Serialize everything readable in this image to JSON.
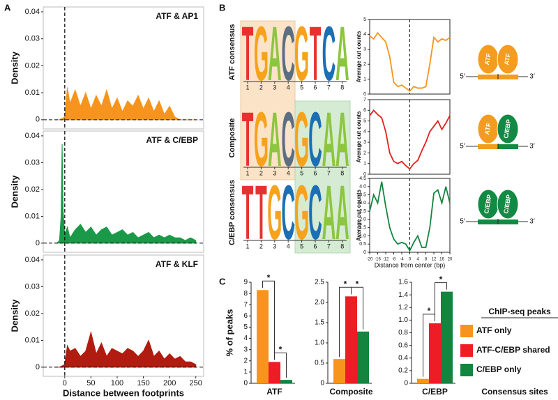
{
  "panel_labels": [
    "A",
    "B",
    "C"
  ],
  "chart_data": [
    {
      "type": "area",
      "title": "ATF & AP1",
      "ylabel": "Density",
      "color": "#f7941d",
      "xlim": [
        -41,
        265
      ],
      "ylim": [
        -0.0034,
        0.0418
      ],
      "yticks": [
        0,
        0.01,
        0.02,
        0.03,
        0.04
      ],
      "x": [
        -20,
        -10,
        0,
        5,
        10,
        20,
        30,
        40,
        50,
        60,
        70,
        80,
        90,
        100,
        110,
        120,
        130,
        140,
        150,
        160,
        170,
        180,
        190,
        200,
        210,
        220,
        230,
        240,
        250
      ],
      "values": [
        0,
        0,
        0.001,
        0.012,
        0.006,
        0.011,
        0.005,
        0.01,
        0.004,
        0.009,
        0.005,
        0.011,
        0.004,
        0.008,
        0.003,
        0.007,
        0.005,
        0.009,
        0.004,
        0.008,
        0.003,
        0.007,
        0.002,
        0.005,
        0.001,
        0,
        0,
        0,
        0
      ]
    },
    {
      "type": "area",
      "title": "ATF & C/EBP",
      "ylabel": "Density",
      "color": "#1a9a48",
      "xlim": [
        -41,
        265
      ],
      "ylim": [
        -0.0034,
        0.0418
      ],
      "yticks": [
        0,
        0.01,
        0.02,
        0.03,
        0.04
      ],
      "x": [
        -20,
        -15,
        -10,
        -7,
        -5,
        -3,
        0,
        5,
        10,
        20,
        30,
        40,
        50,
        60,
        70,
        80,
        90,
        100,
        110,
        120,
        130,
        140,
        150,
        160,
        170,
        180,
        190,
        200,
        210,
        220,
        230,
        240,
        250
      ],
      "values": [
        0,
        0,
        0.001,
        0.01,
        0.037,
        0.012,
        0.003,
        0.006,
        0.002,
        0.005,
        0.007,
        0.004,
        0.006,
        0.003,
        0.005,
        0.006,
        0.003,
        0.004,
        0.005,
        0.003,
        0.004,
        0.002,
        0.003,
        0.004,
        0.002,
        0.003,
        0.002,
        0.003,
        0.002,
        0.002,
        0.001,
        0.002,
        0.001
      ]
    },
    {
      "type": "area",
      "title": "ATF & KLF",
      "ylabel": "Density",
      "xlabel": "Distance between footprints",
      "color": "#b01c0f",
      "xlim": [
        -41,
        265
      ],
      "ylim": [
        -0.0034,
        0.0418
      ],
      "yticks": [
        0,
        0.01,
        0.02,
        0.03,
        0.04
      ],
      "xticks": [
        0,
        50,
        100,
        150,
        200,
        250
      ],
      "x": [
        -20,
        -10,
        0,
        5,
        10,
        20,
        30,
        40,
        50,
        60,
        70,
        80,
        90,
        100,
        110,
        120,
        130,
        140,
        150,
        160,
        170,
        180,
        190,
        200,
        210,
        220,
        230,
        240,
        250
      ],
      "values": [
        0,
        0,
        0.001,
        0.008,
        0.006,
        0.007,
        0.004,
        0.006,
        0.013,
        0.005,
        0.009,
        0.004,
        0.007,
        0.006,
        0.005,
        0.007,
        0.006,
        0.004,
        0.006,
        0.01,
        0.004,
        0.006,
        0.003,
        0.005,
        0.003,
        0.004,
        0.002,
        0.002,
        0.001
      ]
    },
    {
      "type": "line",
      "ylabel": "Average cut counts",
      "color": "#f7941d",
      "xlim": [
        -20,
        20
      ],
      "ylim": [
        0,
        5
      ],
      "yticks": [
        0,
        1,
        2,
        3,
        4,
        5
      ],
      "x": [
        -20,
        -18,
        -16,
        -14,
        -12,
        -10,
        -8,
        -6,
        -4,
        -2,
        0,
        2,
        4,
        6,
        8,
        10,
        12,
        14,
        16,
        18,
        20
      ],
      "values": [
        3.9,
        3.7,
        4.1,
        3.8,
        3.5,
        2.5,
        0.8,
        0.5,
        0.6,
        0.4,
        0.2,
        0.5,
        0.4,
        0.4,
        0.5,
        2.0,
        3.8,
        3.5,
        3.7,
        3.6,
        3.8
      ]
    },
    {
      "type": "line",
      "ylabel": "Average cut counts",
      "color": "#e0211c",
      "xlim": [
        -20,
        20
      ],
      "ylim": [
        0,
        7
      ],
      "yticks": [
        0,
        1,
        2,
        3,
        4,
        5,
        6,
        7
      ],
      "x": [
        -20,
        -18,
        -16,
        -14,
        -12,
        -10,
        -8,
        -6,
        -4,
        -2,
        0,
        2,
        4,
        6,
        8,
        10,
        12,
        14,
        16,
        18,
        20
      ],
      "values": [
        5.5,
        6.0,
        5.6,
        5.3,
        4.0,
        2.0,
        1.2,
        1.0,
        1.2,
        0.8,
        0.5,
        1.0,
        1.3,
        2.2,
        3.0,
        4.0,
        4.5,
        5.0,
        4.2,
        4.8,
        5.5
      ]
    },
    {
      "type": "line",
      "ylabel": "Average cut counts",
      "xlabel": "Distance from center (bp)",
      "color": "#14853e",
      "xlim": [
        -20,
        20
      ],
      "ylim": [
        0,
        4.5
      ],
      "yticks": [
        0,
        0.5,
        {
          "value": 1,
          "label": "1.0"
        },
        1.5,
        {
          "value": 2,
          "label": "2.0"
        },
        2.5,
        {
          "value": 3,
          "label": "3.0"
        },
        3.5,
        {
          "value": 4,
          "label": "4.0"
        },
        4.5
      ],
      "xticks": [
        -20,
        -16,
        -12,
        -8,
        -4,
        0,
        4,
        8,
        12,
        16,
        20
      ],
      "x": [
        -20,
        -18,
        -16,
        -14,
        -12,
        -10,
        -8,
        -6,
        -4,
        -2,
        0,
        2,
        4,
        6,
        8,
        10,
        12,
        14,
        16,
        18,
        20
      ],
      "values": [
        2.5,
        3.5,
        3.0,
        4.3,
        2.8,
        1.5,
        0.8,
        0.5,
        0.6,
        0.5,
        0.1,
        0.6,
        1.0,
        0.3,
        0.3,
        1.5,
        3.6,
        3.8,
        3.0,
        4.0,
        3.0
      ]
    },
    {
      "type": "bar",
      "xlabel": "ATF",
      "ylabel": "% of peaks",
      "ylim": [
        0,
        9
      ],
      "yticks": [
        0,
        1,
        2,
        3,
        4,
        5,
        6,
        7,
        8,
        9
      ],
      "values": [
        8.3,
        1.9,
        0.3
      ],
      "annotations": [
        "*",
        "*"
      ]
    },
    {
      "type": "bar",
      "xlabel": "Composite",
      "ylim": [
        0,
        2.5
      ],
      "yticks": [
        0,
        0.5,
        {
          "value": 1,
          "label": "1.0"
        },
        1.5,
        {
          "value": 2,
          "label": "2.0"
        },
        2.5
      ],
      "values": [
        0.6,
        2.15,
        1.28
      ],
      "annotations": [
        "*",
        "*"
      ]
    },
    {
      "type": "bar",
      "xlabel": "C/EBP",
      "ylim": [
        0,
        1.6
      ],
      "yticks": [
        0,
        0.2,
        0.4,
        0.6,
        0.8,
        {
          "value": 1,
          "label": "1.0"
        },
        1.2,
        1.4,
        1.6
      ],
      "values": [
        0.07,
        0.95,
        1.45
      ],
      "annotations": [
        "*",
        "*"
      ]
    }
  ],
  "legend": {
    "title": "ChIP-seq peaks",
    "note": "Consensus sites",
    "items": [
      {
        "name": "ATF only",
        "color": "#f7941d"
      },
      {
        "name": "ATF-C/EBP shared",
        "color": "#ee1c25"
      },
      {
        "name": "C/EBP only",
        "color": "#14853e"
      }
    ]
  },
  "logos": [
    {
      "label": "ATF consensus",
      "letters": [
        "T",
        "G",
        "A",
        "C",
        "G",
        "T",
        "C",
        "A"
      ],
      "positions": [
        1,
        2,
        3,
        4,
        5,
        6,
        7,
        8
      ]
    },
    {
      "label": "Composite",
      "letters": [
        "T",
        "G",
        "A",
        "C",
        "G",
        "C",
        "A",
        "A"
      ],
      "positions": [
        1,
        2,
        3,
        4,
        5,
        6,
        7,
        8
      ]
    },
    {
      "label": "C/EBP consensus",
      "letters": [
        "T",
        "T",
        "G",
        "C",
        "G",
        "C",
        "A",
        "A"
      ],
      "positions": [
        1,
        2,
        3,
        4,
        5,
        6,
        7,
        8
      ]
    }
  ],
  "diagrams": [
    {
      "five": "5′",
      "three": "3′",
      "proteins": [
        {
          "label": "ATF",
          "color": "#f39c1f"
        },
        {
          "label": "ATF",
          "color": "#f39c1f"
        }
      ]
    },
    {
      "five": "5′",
      "three": "3′",
      "proteins": [
        {
          "label": "ATF",
          "color": "#f39c1f"
        },
        {
          "label": "C/EBP",
          "color": "#138a43"
        }
      ]
    },
    {
      "five": "5′",
      "three": "3′",
      "proteins": [
        {
          "label": "C/EBP",
          "color": "#138a43"
        },
        {
          "label": "C/EBP",
          "color": "#138a43"
        }
      ]
    }
  ]
}
